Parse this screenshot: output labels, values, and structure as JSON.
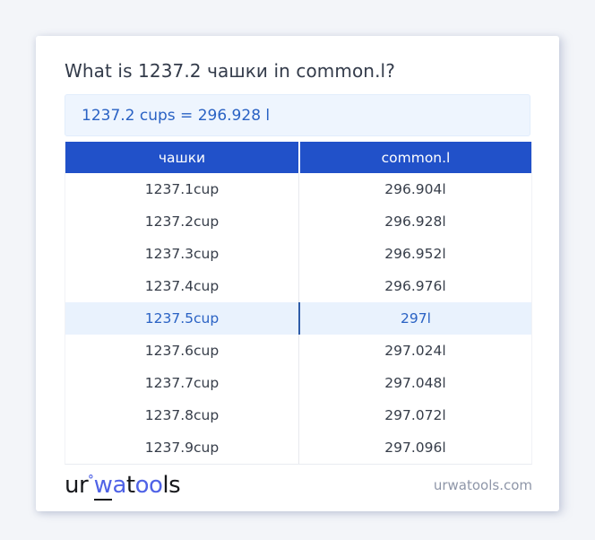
{
  "page": {
    "title": "What is 1237.2 чашки in common.l?",
    "result": "1237.2 cups = 296.928 l",
    "footer_domain": "urwatools.com"
  },
  "logo": {
    "part_ur": "ur",
    "degree": "°",
    "part_w": "w",
    "part_a": "a",
    "part_t": "t",
    "part_oo": "oo",
    "part_ls": "ls"
  },
  "table": {
    "headers": {
      "from": "чашки",
      "to": "common.l"
    },
    "highlight_index": 4,
    "rows": [
      {
        "cup": "1237.1cup",
        "l": "296.904l"
      },
      {
        "cup": "1237.2cup",
        "l": "296.928l"
      },
      {
        "cup": "1237.3cup",
        "l": "296.952l"
      },
      {
        "cup": "1237.4cup",
        "l": "296.976l"
      },
      {
        "cup": "1237.5cup",
        "l": "297l"
      },
      {
        "cup": "1237.6cup",
        "l": "297.024l"
      },
      {
        "cup": "1237.7cup",
        "l": "297.048l"
      },
      {
        "cup": "1237.8cup",
        "l": "297.072l"
      },
      {
        "cup": "1237.9cup",
        "l": "297.096l"
      }
    ]
  },
  "colors": {
    "accent_blue": "#2151c9",
    "link_blue": "#2a62c4",
    "highlight_row_bg": "#e9f2fd",
    "result_box_bg": "#eef5fe",
    "page_bg": "#f3f5f9",
    "logo_blue": "#5063e6"
  }
}
